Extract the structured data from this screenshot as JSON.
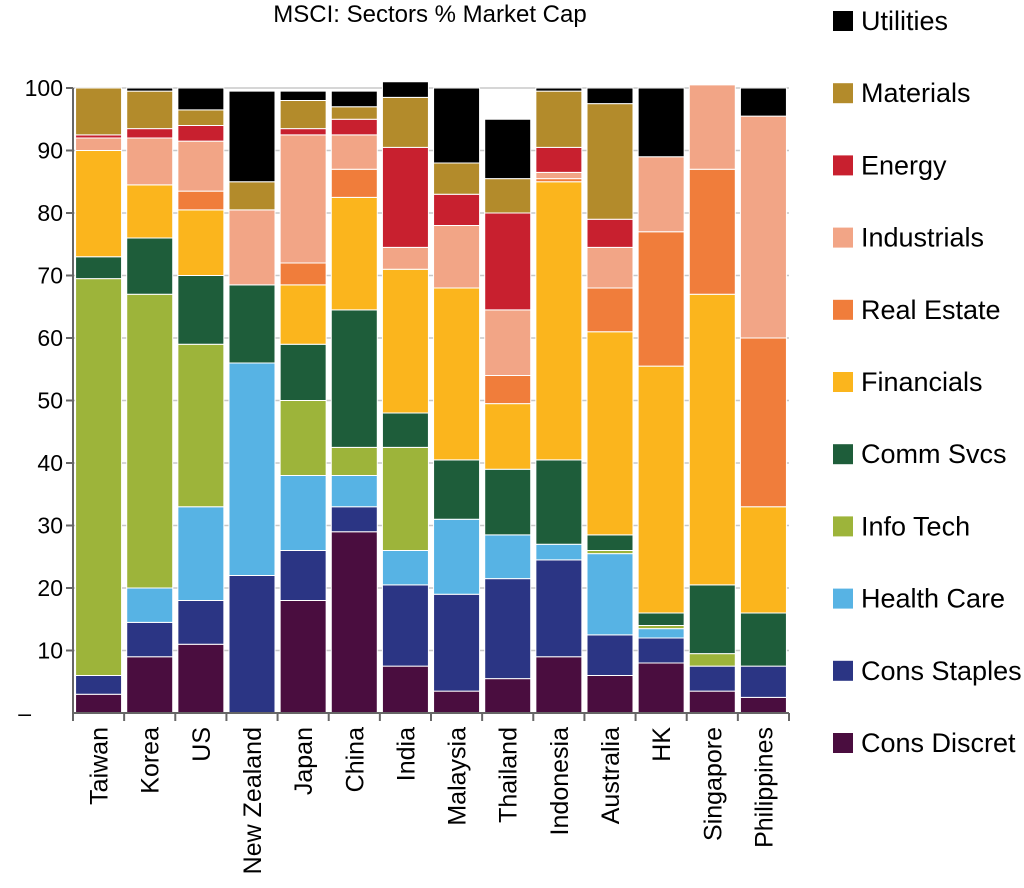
{
  "chart_data": {
    "type": "bar",
    "stacked": true,
    "title": "MSCI: Sectors % Market Cap",
    "xlabel": "",
    "ylabel": "",
    "ylim": [
      0,
      100
    ],
    "yticks": [
      100,
      90,
      80,
      70,
      60,
      50,
      40,
      30,
      20,
      10
    ],
    "ytick_zero_label": "–",
    "grid": true,
    "legend_position": "right",
    "categories": [
      "Taiwan",
      "Korea",
      "US",
      "New Zealand",
      "Japan",
      "China",
      "India",
      "Malaysia",
      "Thailand",
      "Indonesia",
      "Australia",
      "HK",
      "Singapore",
      "Philippines"
    ],
    "series": [
      {
        "name": "Cons Discret",
        "color": "#4a0d3f",
        "values": [
          3,
          9,
          11,
          0,
          18,
          29,
          7.5,
          3.5,
          5.5,
          9,
          6,
          8,
          3.5,
          2.5
        ]
      },
      {
        "name": "Cons Staples",
        "color": "#2b3584",
        "values": [
          3,
          5.5,
          7,
          22,
          8,
          4,
          13,
          15.5,
          16,
          15.5,
          6.5,
          4,
          4,
          5
        ]
      },
      {
        "name": "Health Care",
        "color": "#57b3e4",
        "values": [
          0,
          5.5,
          15,
          34,
          12,
          5,
          5.5,
          12,
          7,
          2.5,
          13,
          1.5,
          0,
          0
        ]
      },
      {
        "name": "Info Tech",
        "color": "#9db43a",
        "values": [
          63.5,
          47,
          26,
          0,
          12,
          4.5,
          16.5,
          0,
          0,
          0,
          0.5,
          0.5,
          2,
          0
        ]
      },
      {
        "name": "Comm Svcs",
        "color": "#1e5d3a",
        "values": [
          3.5,
          9,
          11,
          12.5,
          9,
          22,
          5.5,
          9.5,
          10.5,
          13.5,
          2.5,
          2,
          11,
          8.5
        ]
      },
      {
        "name": "Financials",
        "color": "#fbb51d",
        "values": [
          17,
          8.5,
          10.5,
          0,
          9.5,
          18,
          23,
          27.5,
          10.5,
          44.5,
          32.5,
          39.5,
          46.5,
          17
        ]
      },
      {
        "name": "Real Estate",
        "color": "#f07d3b",
        "values": [
          0,
          0,
          3,
          0,
          3.5,
          4.5,
          0,
          0,
          4.5,
          0.5,
          7,
          21.5,
          20,
          27
        ]
      },
      {
        "name": "Industrials",
        "color": "#f2a586",
        "values": [
          2,
          7.5,
          8,
          12,
          20.5,
          5.5,
          3.5,
          10,
          10.5,
          1,
          6.5,
          12,
          13.5,
          35.5
        ]
      },
      {
        "name": "Energy",
        "color": "#c8202f",
        "values": [
          0.5,
          1.5,
          2.5,
          0,
          1,
          2.5,
          16,
          5,
          15.5,
          4,
          4.5,
          0,
          0,
          0
        ]
      },
      {
        "name": "Materials",
        "color": "#b38b2b",
        "values": [
          7.5,
          6,
          2.5,
          4.5,
          4.5,
          2,
          8,
          5,
          5.5,
          9,
          18.5,
          0,
          0,
          0
        ]
      },
      {
        "name": "Utilities",
        "color": "#000000",
        "values": [
          0,
          0.5,
          3.5,
          14.5,
          1.5,
          2.5,
          2.5,
          12,
          9.5,
          0.5,
          2.5,
          11,
          0,
          4.5
        ]
      }
    ]
  }
}
